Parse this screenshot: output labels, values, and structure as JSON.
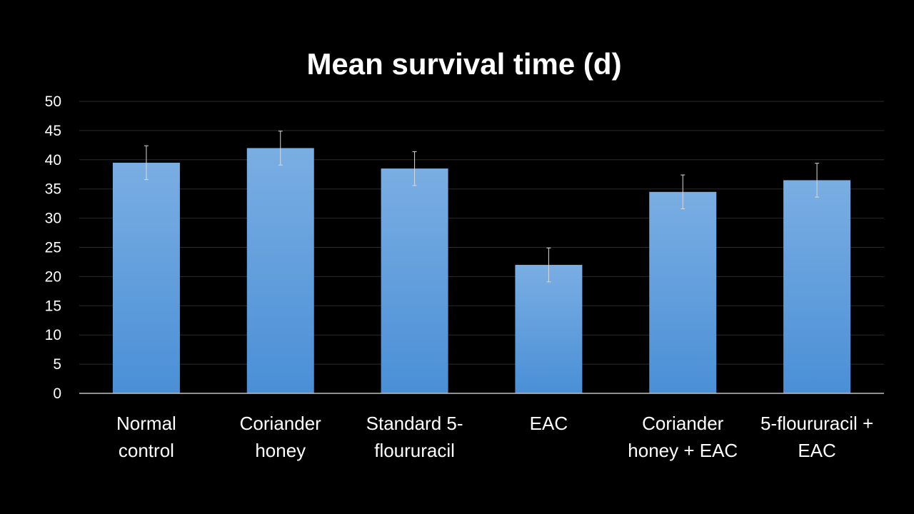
{
  "chart_data": {
    "type": "bar",
    "title": "Mean survival time (d)",
    "xlabel": "",
    "ylabel": "",
    "ylim": [
      0,
      50
    ],
    "yticks": [
      0,
      5,
      10,
      15,
      20,
      25,
      30,
      35,
      40,
      45,
      50
    ],
    "grid": true,
    "legend": "none",
    "categories": [
      [
        "Normal",
        "control"
      ],
      [
        "Coriander",
        "honey"
      ],
      [
        "Standard 5-",
        "floururacil"
      ],
      [
        "EAC"
      ],
      [
        "Coriander",
        "honey + EAC"
      ],
      [
        "5-floururacil +",
        "EAC"
      ]
    ],
    "values": [
      39.5,
      42,
      38.5,
      22,
      34.5,
      36.5
    ],
    "error": [
      2.9,
      2.9,
      2.9,
      2.9,
      2.9,
      2.9
    ],
    "colors": {
      "background": "#000000",
      "bar_top": "#7aaee3",
      "bar_bottom": "#4a8fd6",
      "grid": "#2a2a2a",
      "axis": "#bfbfbf",
      "error_bar": "#d9d9d9",
      "text": "#ffffff"
    }
  }
}
